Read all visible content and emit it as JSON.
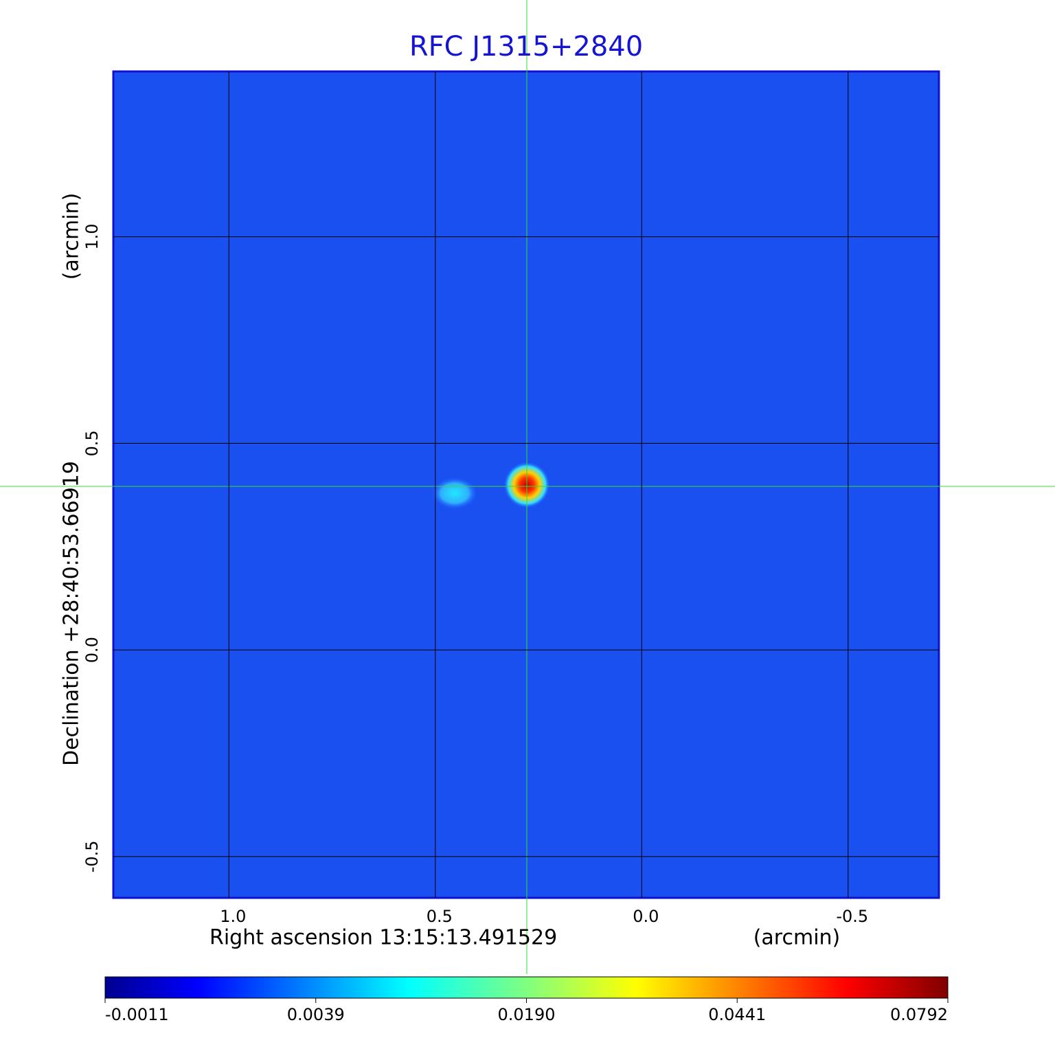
{
  "chart_data": {
    "type": "image",
    "title": "RFC J1315+2840",
    "x_label": "Right ascension  13:15:13.491529",
    "x_unit": "(arcmin)",
    "y_label": "Declination  +28:40:53.66919",
    "y_unit": "(arcmin)",
    "xlim": [
      1.28,
      -0.72
    ],
    "ylim": [
      -0.6,
      1.4
    ],
    "xticks": [
      {
        "value": 1,
        "label": "1.0"
      },
      0.5,
      {
        "value": 0,
        "label": "0.0"
      },
      -0.5
    ],
    "yticks": [
      {
        "value": 1,
        "label": "1.0"
      },
      0.5,
      {
        "value": 0,
        "label": "0.0"
      },
      -0.5
    ],
    "grid": true,
    "colorbar_ticks": [
      -0.0011,
      0.0039,
      {
        "value": 0.019,
        "label": "0.0190"
      },
      0.0441,
      0.0792
    ]
  }
}
